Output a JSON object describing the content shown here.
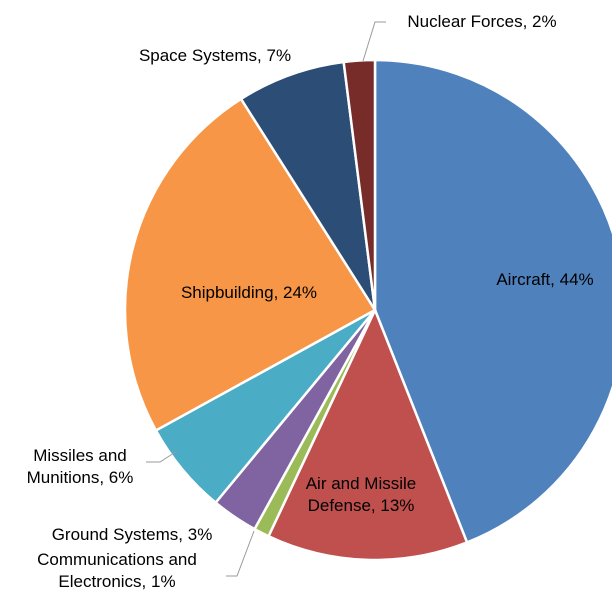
{
  "chart_data": {
    "type": "pie",
    "start_angle_deg": 0,
    "direction": "clockwise",
    "slices": [
      {
        "name": "Aircraft",
        "value": 44,
        "color": "#4F81BD",
        "label_lines": [
          "Aircraft, 44%"
        ]
      },
      {
        "name": "Air and Missile Defense",
        "value": 13,
        "color": "#C0504D",
        "label_lines": [
          "Air and Missile",
          "Defense, 13%"
        ]
      },
      {
        "name": "Communications and Electronics",
        "value": 1,
        "color": "#9BBB59",
        "label_lines": [
          "Communications and",
          "Electronics, 1%"
        ]
      },
      {
        "name": "Ground Systems",
        "value": 3,
        "color": "#8064A2",
        "label_lines": [
          "Ground Systems, 3%"
        ]
      },
      {
        "name": "Missiles and Munitions",
        "value": 6,
        "color": "#4BACC6",
        "label_lines": [
          "Missiles and",
          "Munitions, 6%"
        ]
      },
      {
        "name": "Shipbuilding",
        "value": 24,
        "color": "#F79646",
        "label_lines": [
          "Shipbuilding, 24%"
        ]
      },
      {
        "name": "Space Systems",
        "value": 7,
        "color": "#2C4D75",
        "label_lines": [
          "Space Systems, 7%"
        ]
      },
      {
        "name": "Nuclear Forces",
        "value": 2,
        "color": "#772C2A",
        "label_lines": [
          "Nuclear Forces, 2%"
        ]
      }
    ]
  }
}
